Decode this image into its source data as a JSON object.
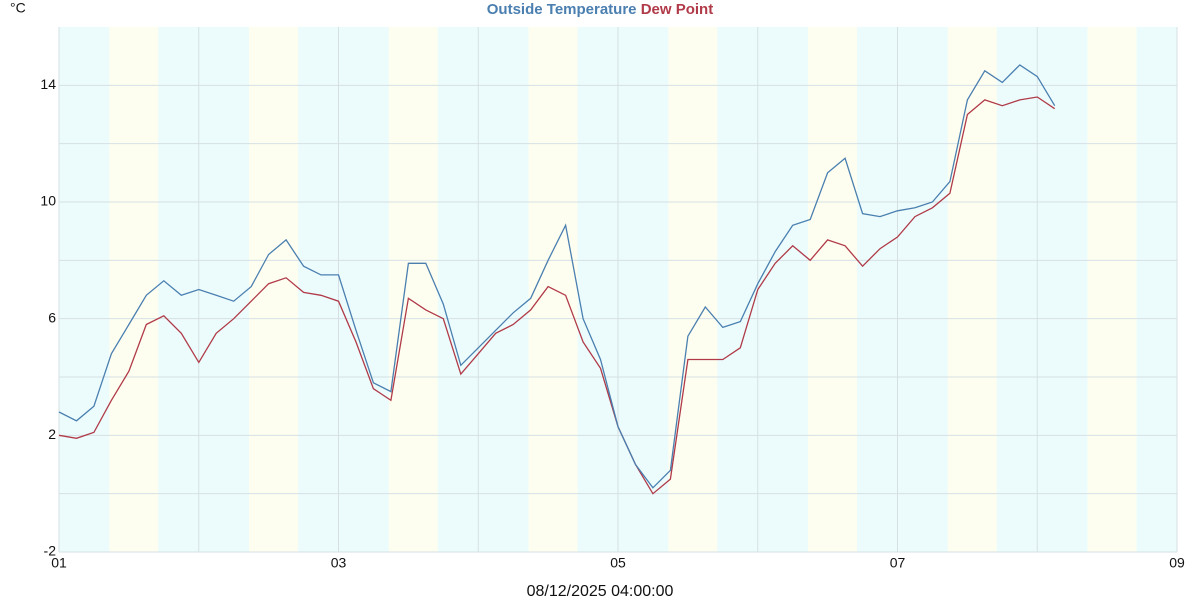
{
  "chart_data": {
    "type": "line",
    "title_parts": [
      "Outside Temperature",
      "Dew Point"
    ],
    "ylabel": "°C",
    "xlabel": "08/12/2025 04:00:00",
    "x": [
      1,
      1.125,
      1.25,
      1.375,
      1.5,
      1.625,
      1.75,
      1.875,
      2,
      2.125,
      2.25,
      2.375,
      2.5,
      2.625,
      2.75,
      2.875,
      3,
      3.125,
      3.25,
      3.375,
      3.5,
      3.625,
      3.75,
      3.875,
      4,
      4.125,
      4.25,
      4.375,
      4.5,
      4.625,
      4.75,
      4.875,
      5,
      5.125,
      5.25,
      5.375,
      5.5,
      5.625,
      5.75,
      5.875,
      6,
      6.125,
      6.25,
      6.375,
      6.5,
      6.625,
      6.75,
      6.875,
      7,
      7.125,
      7.25,
      7.375,
      7.5,
      7.625,
      7.75,
      7.875,
      8,
      8.125
    ],
    "series": [
      {
        "name": "Outside Temperature",
        "color": "#4a7fb0",
        "values": [
          2.8,
          2.5,
          3.0,
          4.8,
          5.8,
          6.8,
          7.3,
          6.8,
          7.0,
          6.8,
          6.6,
          7.1,
          8.2,
          8.7,
          7.8,
          7.5,
          7.5,
          5.6,
          3.8,
          3.5,
          7.9,
          7.9,
          6.5,
          4.4,
          5.0,
          5.6,
          6.2,
          6.7,
          8.0,
          9.2,
          6.0,
          4.6,
          2.3,
          1.0,
          0.2,
          0.8,
          5.4,
          6.4,
          5.7,
          5.9,
          7.2,
          8.3,
          9.2,
          9.4,
          11.0,
          11.5,
          9.6,
          9.5,
          9.7,
          9.8,
          10.0,
          10.7,
          13.5,
          14.5,
          14.1,
          14.7,
          14.3,
          13.3
        ]
      },
      {
        "name": "Dew Point",
        "color": "#b03a48",
        "values": [
          2.0,
          1.9,
          2.1,
          3.2,
          4.2,
          5.8,
          6.1,
          5.5,
          4.5,
          5.5,
          6.0,
          6.6,
          7.2,
          7.4,
          6.9,
          6.8,
          6.6,
          5.2,
          3.6,
          3.2,
          6.7,
          6.3,
          6.0,
          4.1,
          4.8,
          5.5,
          5.8,
          6.3,
          7.1,
          6.8,
          5.2,
          4.3,
          2.3,
          1.0,
          0.0,
          0.5,
          4.6,
          4.6,
          4.6,
          5.0,
          7.0,
          7.9,
          8.5,
          8.0,
          8.7,
          8.5,
          7.8,
          8.4,
          8.8,
          9.5,
          9.8,
          10.3,
          13.0,
          13.5,
          13.3,
          13.5,
          13.6,
          13.2
        ]
      }
    ],
    "xlim": [
      1,
      9
    ],
    "xticks": [
      {
        "value": 1,
        "label": "01"
      },
      {
        "value": 3,
        "label": "03"
      },
      {
        "value": 5,
        "label": "05"
      },
      {
        "value": 7,
        "label": "07"
      },
      {
        "value": 9,
        "label": "09"
      }
    ],
    "x_minor_grid": [
      2,
      4,
      6,
      8
    ],
    "ylim": [
      -2,
      16
    ],
    "yticks": [
      -2,
      2,
      6,
      10,
      14
    ],
    "y_minor_grid": [
      0,
      4,
      8,
      12
    ],
    "grid": true,
    "night_color": "#ecfcfc",
    "day_color": "#fefef0",
    "day_shading": [
      [
        1.36,
        1.71
      ],
      [
        2.36,
        2.71
      ],
      [
        3.36,
        3.71
      ],
      [
        4.36,
        4.71
      ],
      [
        5.36,
        5.71
      ],
      [
        6.36,
        6.71
      ],
      [
        7.36,
        7.71
      ],
      [
        8.36,
        8.71
      ]
    ]
  }
}
